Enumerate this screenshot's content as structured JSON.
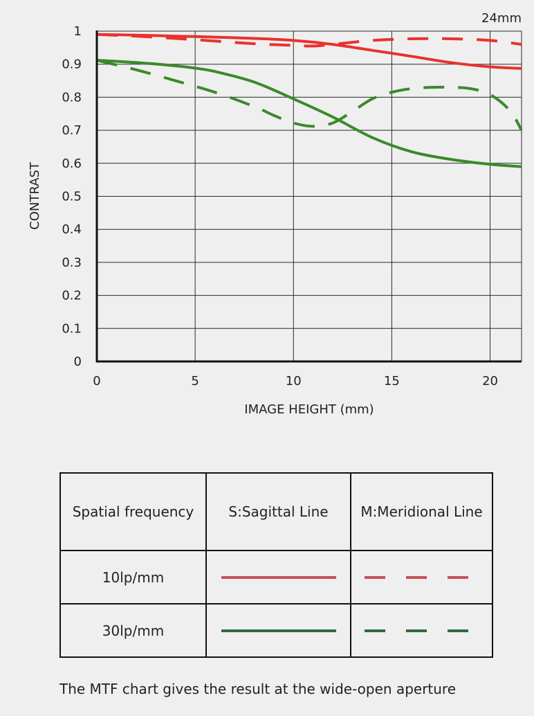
{
  "chart_data": {
    "type": "line",
    "title": "24mm",
    "xlabel": "IMAGE HEIGHT (mm)",
    "ylabel": "CONTRAST",
    "xlim": [
      0,
      21.6
    ],
    "ylim": [
      0,
      1
    ],
    "x_ticks": [
      "0",
      "5",
      "10",
      "15",
      "20"
    ],
    "y_ticks": [
      "0",
      "0.1",
      "0.2",
      "0.3",
      "0.4",
      "0.5",
      "0.6",
      "0.7",
      "0.8",
      "0.9",
      "1"
    ],
    "grid": true,
    "series": [
      {
        "name": "10lp/mm S:Sagittal Line",
        "color": "#e8322d",
        "style": "solid",
        "x": [
          0,
          2,
          4,
          6,
          8,
          10,
          12,
          14,
          16,
          18,
          20,
          21.6
        ],
        "y": [
          0.99,
          0.988,
          0.985,
          0.982,
          0.978,
          0.972,
          0.96,
          0.942,
          0.924,
          0.905,
          0.892,
          0.887
        ]
      },
      {
        "name": "10lp/mm M:Meridional Line",
        "color": "#e8322d",
        "style": "dashed",
        "x": [
          0,
          2,
          4,
          6,
          8,
          10,
          11,
          12,
          14,
          16,
          18,
          20,
          21.6
        ],
        "y": [
          0.99,
          0.985,
          0.978,
          0.97,
          0.962,
          0.957,
          0.955,
          0.96,
          0.972,
          0.977,
          0.977,
          0.972,
          0.96
        ]
      },
      {
        "name": "30lp/mm S:Sagittal Line",
        "color": "#3a8a2b",
        "style": "solid",
        "x": [
          0,
          2,
          4,
          5,
          6,
          8,
          10,
          12,
          14,
          16,
          18,
          20,
          21.6
        ],
        "y": [
          0.912,
          0.905,
          0.895,
          0.888,
          0.878,
          0.846,
          0.795,
          0.74,
          0.678,
          0.635,
          0.612,
          0.597,
          0.59
        ]
      },
      {
        "name": "30lp/mm M:Meridional Line",
        "color": "#3a8a2b",
        "style": "dashed",
        "x": [
          0,
          2,
          4,
          6,
          8,
          9,
          10,
          11,
          12,
          13,
          14,
          15,
          16,
          17,
          18,
          19,
          20,
          21,
          21.6
        ],
        "y": [
          0.912,
          0.883,
          0.85,
          0.815,
          0.772,
          0.745,
          0.722,
          0.712,
          0.722,
          0.757,
          0.795,
          0.815,
          0.826,
          0.83,
          0.83,
          0.826,
          0.808,
          0.76,
          0.7
        ]
      }
    ]
  },
  "legend": {
    "header_frequency": "Spatial frequency",
    "header_sagittal": "S:Sagittal Line",
    "header_meridional": "M:Meridional Line",
    "rows": [
      {
        "label": "10lp/mm",
        "color": "#c8505a"
      },
      {
        "label": "30lp/mm",
        "color": "#2f6b3c"
      }
    ]
  },
  "footnote": "The MTF chart gives the result at the wide-open aperture"
}
